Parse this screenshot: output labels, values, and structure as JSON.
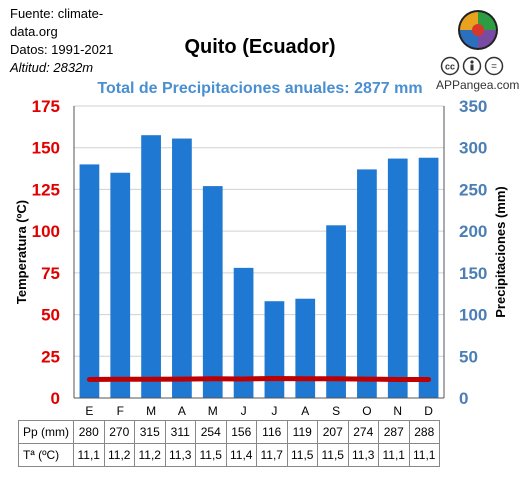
{
  "source": {
    "line1": "Fuente: climate-",
    "line2": "data.org",
    "dates": "Datos: 1991-2021",
    "altitude_label": "Altitud:",
    "altitude_value": "2832m"
  },
  "brand": "APPangea.com",
  "colors": {
    "bars": "#1f78d1",
    "temperature_line": "#c00000",
    "left_axis": "#e00000",
    "right_axis": "#4a7eb5",
    "subtitle": "#4a8fd1"
  },
  "icons": [
    "appangea-logo-icon",
    "creative-commons-icon"
  ],
  "chart_data": {
    "type": "bar",
    "title": "Quito (Ecuador)",
    "subtitle": "Total de Precipitaciones anuales: 2877 mm",
    "categories": [
      "E",
      "F",
      "M",
      "A",
      "M",
      "J",
      "J",
      "A",
      "S",
      "O",
      "N",
      "D"
    ],
    "series": [
      {
        "name": "Pp (mm)",
        "type": "bar",
        "axis": "right",
        "values": [
          280,
          270,
          315,
          311,
          254,
          156,
          116,
          119,
          207,
          274,
          287,
          288
        ]
      },
      {
        "name": "Tª (ºC)",
        "type": "line",
        "axis": "left",
        "values": [
          11.1,
          11.2,
          11.2,
          11.3,
          11.5,
          11.4,
          11.7,
          11.5,
          11.5,
          11.3,
          11.1,
          11.1
        ]
      }
    ],
    "ylabel_left": "Temperatura (ºC)",
    "ylabel_right": "Precipitaciones (mm)",
    "ylim_left": [
      0,
      175
    ],
    "ylim_right": [
      0,
      350
    ],
    "yticks_left": [
      0,
      25,
      50,
      75,
      100,
      125,
      150,
      175
    ],
    "yticks_right": [
      0,
      50,
      100,
      150,
      200,
      250,
      300,
      350
    ],
    "grid": true,
    "table": {
      "row_labels": [
        "Pp (mm)",
        "Tª (ºC)"
      ],
      "pp": [
        "280",
        "270",
        "315",
        "311",
        "254",
        "156",
        "116",
        "119",
        "207",
        "274",
        "287",
        "288"
      ],
      "temp": [
        "11,1",
        "11,2",
        "11,2",
        "11,3",
        "11,5",
        "11,4",
        "11,7",
        "11,5",
        "11,5",
        "11,3",
        "11,1",
        "11,1"
      ]
    }
  }
}
